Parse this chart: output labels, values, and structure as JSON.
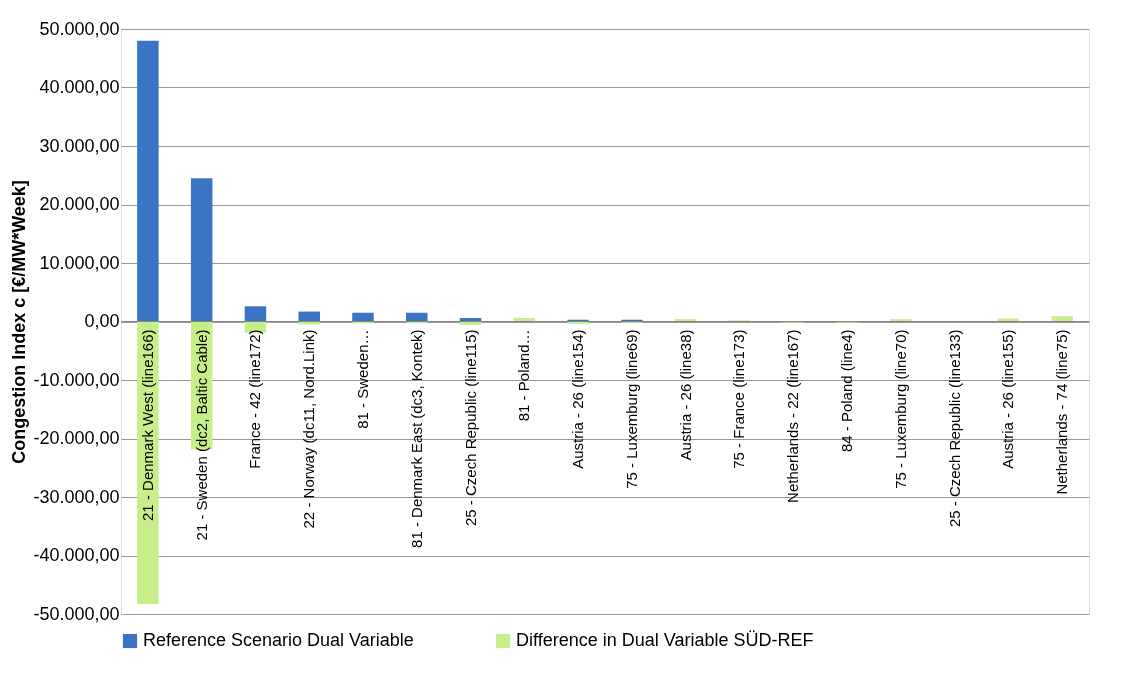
{
  "chart_data": {
    "type": "bar",
    "ylabel": "Congestion Index c [€/MW*Week]",
    "categories": [
      "21 - Denmark West (line166)",
      "21 - Sweden (dc2, Baltic Cable)",
      "France - 42 (line172)",
      "22 - Norway (dc11, Nord.Link)",
      "81 - Sweden…",
      "81 - Denmark East (dc3, Kontek)",
      "25 - Czech Republic (line115)",
      "81 - Poland…",
      "Austria - 26 (line154)",
      "75 - Luxemburg (line69)",
      "Austria - 26 (line38)",
      "75 - France (line173)",
      "Netherlands - 22 (line167)",
      "84 - Poland (line4)",
      "75 - Luxemburg (line70)",
      "25 - Czech Republic (line133)",
      "Austria - 26 (line155)",
      "Netherlands - 74 (line75)"
    ],
    "series": [
      {
        "name": "Reference Scenario Dual Variable",
        "color": "#3a75c4",
        "values": [
          48000,
          24500,
          2600,
          1700,
          1500,
          1500,
          600,
          100,
          300,
          300,
          0,
          0,
          0,
          0,
          0,
          0,
          0,
          0
        ]
      },
      {
        "name": "Difference in Dual Variable SÜD-REF",
        "color": "#c6ef8a",
        "values": [
          -48300,
          -21900,
          -1900,
          -500,
          -300,
          -300,
          -600,
          500,
          -400,
          -200,
          400,
          200,
          -200,
          -200,
          400,
          0,
          500,
          900
        ]
      }
    ],
    "ylim": [
      -50000,
      50000
    ],
    "yticks": [
      {
        "value": -50000,
        "label": "-50.000,00"
      },
      {
        "value": -40000,
        "label": "-40.000,00"
      },
      {
        "value": -30000,
        "label": "-30.000,00"
      },
      {
        "value": -20000,
        "label": "-20.000,00"
      },
      {
        "value": -10000,
        "label": "-10.000,00"
      },
      {
        "value": 0,
        "label": "0,00"
      },
      {
        "value": 10000,
        "label": "10.000,00"
      },
      {
        "value": 20000,
        "label": "20.000,00"
      },
      {
        "value": 30000,
        "label": "30.000,00"
      },
      {
        "value": 40000,
        "label": "40.000,00"
      },
      {
        "value": 50000,
        "label": "50.000,00"
      }
    ],
    "grid": "y",
    "legend": "bottom"
  }
}
